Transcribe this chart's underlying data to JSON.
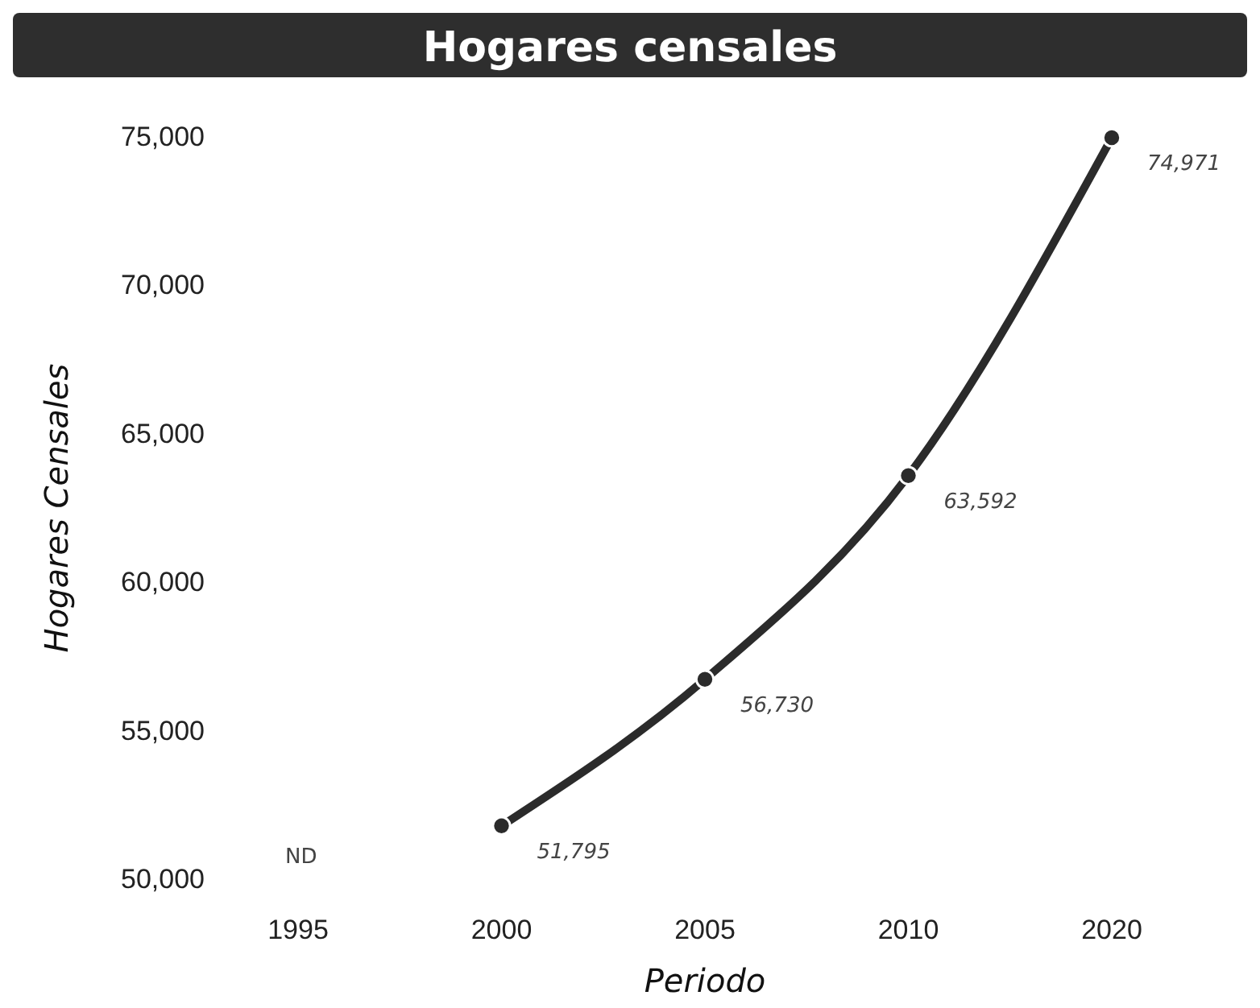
{
  "chart_data": {
    "type": "line",
    "title": "Hogares censales",
    "xlabel": "Periodo",
    "ylabel": "Hogares Censales",
    "categories": [
      "1995",
      "2000",
      "2005",
      "2010",
      "2020"
    ],
    "series": [
      {
        "color": "#2b2b2b",
        "values": [
          null,
          51795,
          56730,
          63592,
          74971
        ]
      }
    ],
    "value_labels": [
      "ND",
      "51,795",
      "56,730",
      "63,592",
      "74,971"
    ],
    "ylim": [
      50000,
      75000
    ],
    "yticks": [
      {
        "value": 50000,
        "label": "50,000"
      },
      {
        "value": 55000,
        "label": "55,000"
      },
      {
        "value": 60000,
        "label": "60,000"
      },
      {
        "value": 65000,
        "label": "65,000"
      },
      {
        "value": 70000,
        "label": "70,000"
      },
      {
        "value": 75000,
        "label": "75,000"
      }
    ],
    "grid": false,
    "marker": "circle",
    "line_style": "solid"
  }
}
